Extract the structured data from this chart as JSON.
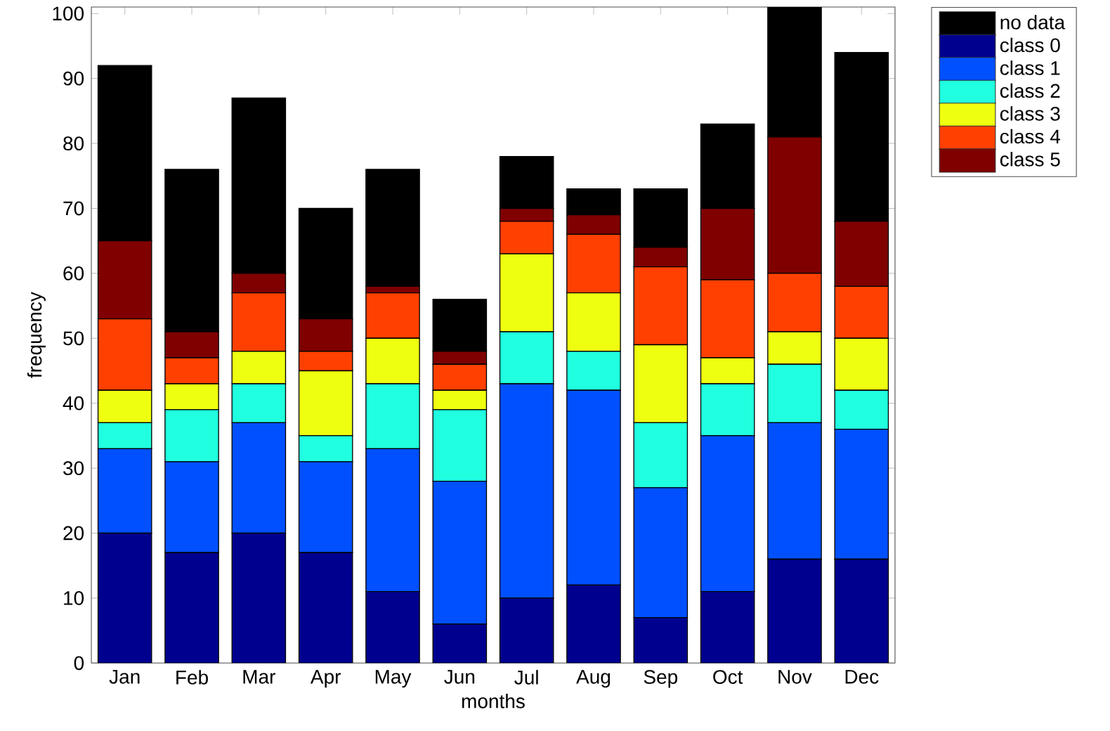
{
  "chart_data": {
    "type": "bar",
    "stacked": true,
    "xlabel": "months",
    "ylabel": "frequency",
    "categories": [
      "Jan",
      "Feb",
      "Mar",
      "Apr",
      "May",
      "Jun",
      "Jul",
      "Aug",
      "Sep",
      "Oct",
      "Nov",
      "Dec"
    ],
    "series": [
      {
        "name": "class 0",
        "color": "#00008f",
        "values": [
          20,
          17,
          20,
          17,
          11,
          6,
          10,
          12,
          7,
          11,
          16,
          16
        ]
      },
      {
        "name": "class 1",
        "color": "#0050ff",
        "values": [
          13,
          14,
          17,
          14,
          22,
          22,
          33,
          30,
          20,
          24,
          21,
          20
        ]
      },
      {
        "name": "class 2",
        "color": "#20ffdf",
        "values": [
          4,
          8,
          6,
          4,
          10,
          11,
          8,
          6,
          10,
          8,
          9,
          6
        ]
      },
      {
        "name": "class 3",
        "color": "#efff10",
        "values": [
          5,
          4,
          5,
          10,
          7,
          3,
          12,
          9,
          12,
          4,
          5,
          8
        ]
      },
      {
        "name": "class 4",
        "color": "#ff4000",
        "values": [
          11,
          4,
          9,
          3,
          7,
          4,
          5,
          9,
          12,
          12,
          9,
          8
        ]
      },
      {
        "name": "class 5",
        "color": "#800000",
        "values": [
          12,
          4,
          3,
          5,
          1,
          2,
          2,
          3,
          3,
          11,
          21,
          10
        ]
      },
      {
        "name": "no data",
        "color": "#000000",
        "values": [
          27,
          25,
          27,
          17,
          18,
          8,
          8,
          4,
          9,
          13,
          20,
          26
        ]
      }
    ],
    "ylim": [
      0,
      101
    ],
    "yticks": [
      0,
      10,
      20,
      30,
      40,
      50,
      60,
      70,
      80,
      90,
      100
    ],
    "grid": false,
    "legend": "top right"
  }
}
